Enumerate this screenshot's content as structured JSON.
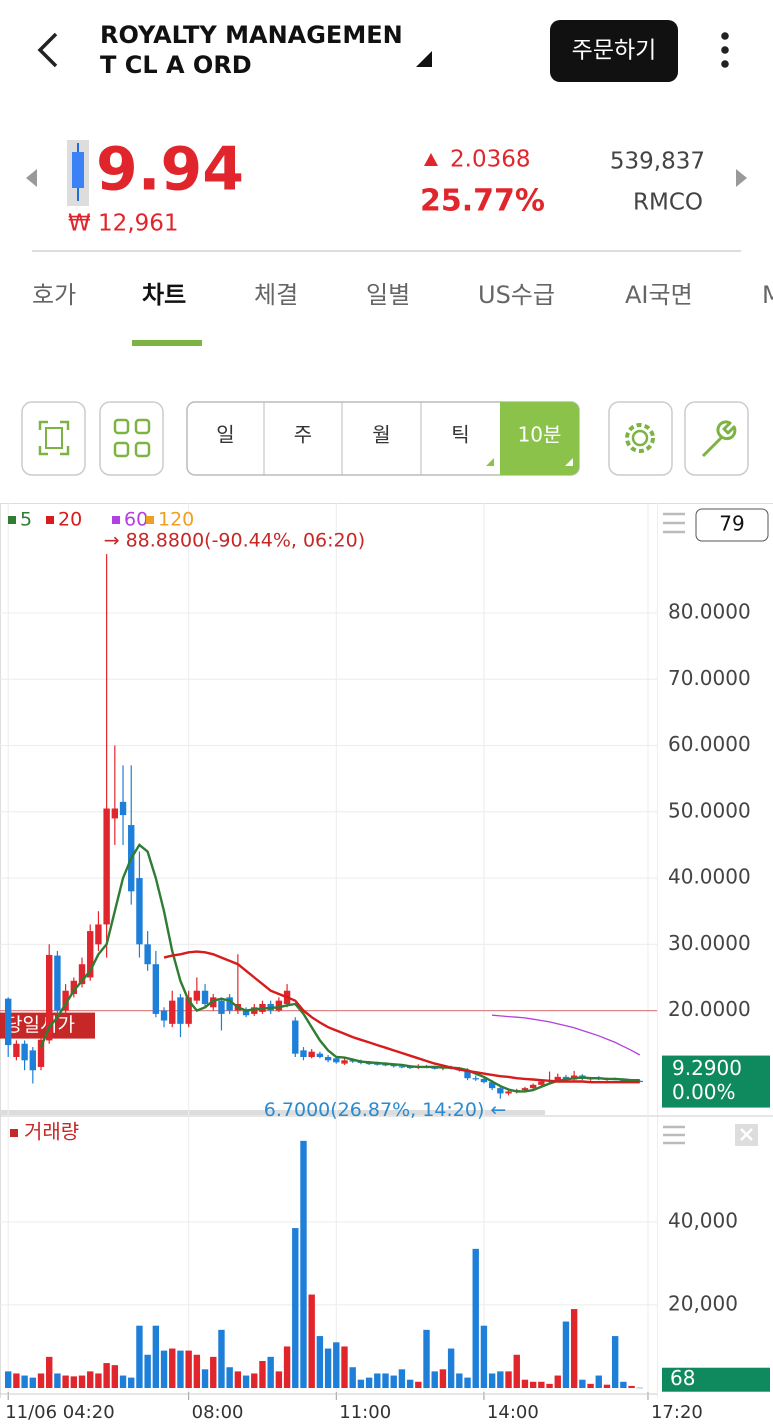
{
  "header": {
    "title_line1": "ROYALTY MANAGEMEN",
    "title_line2": "T CL A ORD",
    "order_button": "주문하기"
  },
  "quote": {
    "price": "9.94",
    "krw": "₩ 12,961",
    "change": "2.0368",
    "change_pct": "25.77%",
    "volume": "539,837",
    "symbol": "RMCO"
  },
  "tabs": [
    "호가",
    "차트",
    "체결",
    "일별",
    "US수급",
    "AI국면",
    "M"
  ],
  "toolbar": {
    "periods": [
      "일",
      "주",
      "월",
      "틱",
      "10분"
    ]
  },
  "chart_data": {
    "type": "candlestick",
    "up_color": "#e0262c",
    "down_color": "#1e7fd8",
    "xlim": [
      -1,
      79.1
    ],
    "xticks": [
      {
        "value": 0,
        "label": "11/06 04:20"
      },
      {
        "value": 22,
        "label": "08:00"
      },
      {
        "value": 40,
        "label": "11:00"
      },
      {
        "value": 58,
        "label": "14:00"
      },
      {
        "value": 78,
        "label": "17:20"
      }
    ],
    "ylim": [
      5,
      96.6
    ],
    "yticks": [
      {
        "value": 80,
        "label": "80.0000"
      },
      {
        "value": 70,
        "label": "70.0000"
      },
      {
        "value": 60,
        "label": "60.0000"
      },
      {
        "value": 50,
        "label": "50.0000"
      },
      {
        "value": 40,
        "label": "40.0000"
      },
      {
        "value": 30,
        "label": "30.0000"
      },
      {
        "value": 20,
        "label": "20.0000"
      }
    ],
    "grid": true,
    "scale_count": 79,
    "open": [
      21.8,
      13,
      15,
      14,
      11.5,
      15.5,
      28.3,
      20,
      22.5,
      24,
      25,
      30,
      33,
      49,
      51.5,
      48,
      40,
      30,
      27,
      20,
      18,
      22,
      18,
      21.5,
      23,
      20.5,
      21.5,
      22,
      20,
      20,
      19.5,
      19.8,
      21,
      20,
      21,
      18.5,
      14,
      13,
      13.5,
      13,
      12.8,
      12,
      12.5,
      12.3,
      12.1,
      12.0,
      11.9,
      11.8,
      11.6,
      11.5,
      11.4,
      11.6,
      11.4,
      11.3,
      11.5,
      11.2,
      11.0,
      9.8,
      9.7,
      9.2,
      8.3,
      7.5,
      7.8,
      8.0,
      8.3,
      8.8,
      9.3,
      9.5,
      10.0,
      9.6,
      10.2,
      9.7,
      9.8,
      9.6,
      9.7,
      9.5,
      9.3,
      9.4
    ],
    "high": [
      22,
      15.5,
      15.5,
      14.5,
      16,
      30,
      29,
      24,
      25,
      28,
      33,
      35,
      88.88,
      60,
      57,
      57,
      44,
      32,
      29,
      20.5,
      23,
      22.5,
      23,
      25,
      24,
      22.5,
      22,
      22.5,
      28.5,
      20.5,
      21,
      21.5,
      21.5,
      22,
      24,
      19,
      14.5,
      14.2,
      13.8,
      13.3,
      13,
      12.8,
      12.8,
      12.6,
      12.4,
      12.3,
      12.2,
      12.0,
      11.9,
      11.8,
      11.9,
      11.8,
      11.7,
      11.6,
      11.7,
      11.5,
      11.3,
      10.2,
      10.0,
      9.5,
      8.6,
      8.0,
      8.2,
      8.5,
      9.0,
      9.6,
      10.8,
      10.5,
      10.3,
      10.9,
      10.4,
      10.0,
      10.1,
      9.9,
      9.9,
      9.6,
      9.5,
      9.5
    ],
    "low": [
      13,
      12.5,
      11,
      9,
      11,
      15,
      19.5,
      19.5,
      22,
      23.5,
      24.5,
      29,
      28,
      45,
      45,
      36,
      28,
      26,
      19,
      17.5,
      17.5,
      16,
      17.5,
      21,
      20.5,
      20,
      17,
      19.5,
      19.5,
      19,
      19.2,
      19.5,
      19.5,
      19.8,
      20.5,
      13,
      12.5,
      12.8,
      12.8,
      12.2,
      12,
      11.8,
      12.1,
      11.9,
      11.8,
      11.7,
      11.6,
      11.4,
      11.3,
      11.2,
      11.2,
      11.3,
      11.1,
      11.0,
      11.1,
      10.8,
      9.5,
      9.4,
      9.0,
      8.0,
      6.7,
      7.2,
      7.5,
      7.7,
      8.0,
      8.5,
      9.0,
      9.2,
      9.3,
      9.4,
      9.5,
      9.4,
      9.5,
      9.4,
      9.5,
      9.2,
      9.2,
      9.2
    ],
    "close": [
      14.8,
      15,
      12.5,
      11,
      15.6,
      28.4,
      20,
      23,
      24.5,
      27,
      32,
      33,
      50.5,
      50.5,
      49.5,
      38,
      30,
      27,
      19.5,
      18.5,
      21.5,
      18,
      22,
      23,
      21,
      22,
      19.5,
      20,
      21,
      19.3,
      20.5,
      21,
      20,
      21.5,
      23,
      13.5,
      13,
      13.8,
      13,
      12.5,
      12.2,
      12.5,
      12.3,
      12.1,
      12.0,
      11.9,
      11.8,
      11.6,
      11.5,
      11.4,
      11.6,
      11.4,
      11.3,
      11.5,
      11.2,
      11.0,
      9.8,
      9.7,
      9.2,
      8.3,
      7.5,
      7.8,
      8.0,
      8.3,
      8.8,
      9.3,
      9.5,
      10.0,
      9.6,
      10.2,
      9.7,
      9.8,
      9.6,
      9.7,
      9.5,
      9.3,
      9.4,
      9.29
    ],
    "series": [
      {
        "name": "5",
        "color": "#2e7d32",
        "values": [
          null,
          null,
          null,
          null,
          14.5,
          17.5,
          19,
          21,
          23,
          24.5,
          26,
          28.5,
          30,
          35,
          40,
          43,
          45,
          44,
          40,
          35,
          29,
          24.5,
          21.5,
          20,
          20.5,
          21.5,
          21.8,
          21.5,
          20.5,
          20,
          20.2,
          20.3,
          20.4,
          20.5,
          20.8,
          21,
          19.5,
          17.5,
          15.5,
          14,
          13,
          12.9,
          12.6,
          12.3,
          12.2,
          12.1,
          12.0,
          11.9,
          11.8,
          11.6,
          11.5,
          11.5,
          11.5,
          11.4,
          11.4,
          11.3,
          11.0,
          10.5,
          10.0,
          9.3,
          8.6,
          8.1,
          7.8,
          7.8,
          8.0,
          8.5,
          9.0,
          9.4,
          9.6,
          9.8,
          9.9,
          9.8,
          9.8,
          9.7,
          9.7,
          9.6,
          9.5,
          9.5
        ]
      },
      {
        "name": "20",
        "color": "#d81b1b",
        "values": [
          null,
          null,
          null,
          null,
          null,
          null,
          null,
          null,
          null,
          null,
          null,
          null,
          null,
          null,
          null,
          null,
          null,
          null,
          null,
          28,
          28.3,
          28.5,
          28.8,
          28.9,
          28.8,
          28.5,
          28,
          27.5,
          27,
          26,
          25,
          24,
          23,
          22.5,
          22,
          21.5,
          20,
          19,
          18.2,
          17.5,
          17,
          16.5,
          16,
          15.6,
          15.2,
          14.8,
          14.4,
          14.0,
          13.6,
          13.2,
          12.8,
          12.4,
          12.0,
          11.7,
          11.4,
          11.1,
          10.9,
          10.7,
          10.5,
          10.3,
          10.1,
          10.0,
          9.8,
          9.7,
          9.6,
          9.5,
          9.4,
          9.3,
          9.3,
          9.3,
          9.3,
          9.2,
          9.2,
          9.2,
          9.2,
          9.2,
          9.2,
          9.2
        ]
      },
      {
        "name": "60",
        "color": "#b23fe0",
        "values": [
          null,
          null,
          null,
          null,
          null,
          null,
          null,
          null,
          null,
          null,
          null,
          null,
          null,
          null,
          null,
          null,
          null,
          null,
          null,
          null,
          null,
          null,
          null,
          null,
          null,
          null,
          null,
          null,
          null,
          null,
          null,
          null,
          null,
          null,
          null,
          null,
          null,
          null,
          null,
          null,
          null,
          null,
          null,
          null,
          null,
          null,
          null,
          null,
          null,
          null,
          null,
          null,
          null,
          null,
          null,
          null,
          null,
          null,
          null,
          19.3,
          19.2,
          19.1,
          19.0,
          18.9,
          18.7,
          18.5,
          18.3,
          18.0,
          17.7,
          17.4,
          17.0,
          16.6,
          16.2,
          15.7,
          15.2,
          14.6,
          14.0,
          13.3
        ]
      },
      {
        "name": "120",
        "color": "#f0a020",
        "values": [
          null,
          null,
          null,
          null,
          null,
          null,
          null,
          null,
          null,
          null,
          null,
          null,
          null,
          null,
          null,
          null,
          null,
          null,
          null,
          null,
          null,
          null,
          null,
          null,
          null,
          null,
          null,
          null,
          null,
          null,
          null,
          null,
          null,
          null,
          null,
          null,
          null,
          null,
          null,
          null,
          null,
          null,
          null,
          null,
          null,
          null,
          null,
          null,
          null,
          null,
          null,
          null,
          null,
          null,
          null,
          null,
          null,
          null,
          null,
          null,
          null,
          null,
          null,
          null,
          null,
          null,
          null,
          null,
          null,
          null,
          null,
          null,
          null,
          null,
          null,
          null,
          null,
          null
        ]
      }
    ],
    "max_label": {
      "value": 88.88,
      "label": "→ 88.8800(-90.44%, 06:20)"
    },
    "min_label": {
      "value": 6.7,
      "label": "6.7000(26.87%, 14:20) ←"
    },
    "open_line": {
      "value": 20.0,
      "label": "당일시가"
    },
    "last_price": {
      "value": 9.29,
      "label": "9.2900",
      "change": "0.00%"
    },
    "volume": {
      "title": "거래량",
      "ylim": [
        0,
        65000
      ],
      "yticks": [
        {
          "value": 40000,
          "label": "40,000"
        },
        {
          "value": 20000,
          "label": "20,000"
        }
      ],
      "current": 68,
      "values": [
        4000,
        3500,
        3000,
        2500,
        3500,
        7500,
        3500,
        3000,
        2800,
        3000,
        4000,
        3500,
        6000,
        5500,
        3000,
        2500,
        15000,
        8000,
        15000,
        9000,
        9500,
        9000,
        9000,
        8000,
        4500,
        7500,
        14000,
        5000,
        4000,
        3000,
        3500,
        6500,
        7500,
        4000,
        10000,
        38500,
        59500,
        22500,
        12500,
        9500,
        11000,
        10000,
        5000,
        2000,
        2500,
        3500,
        3500,
        3000,
        4500,
        2000,
        1500,
        14000,
        4000,
        4500,
        9500,
        3500,
        2500,
        33500,
        15000,
        3500,
        4000,
        4000,
        8000,
        2000,
        1500,
        1500,
        1000,
        3000,
        16000,
        19000,
        2000,
        1000,
        3000,
        800,
        12500,
        1500,
        500,
        68
      ]
    }
  }
}
